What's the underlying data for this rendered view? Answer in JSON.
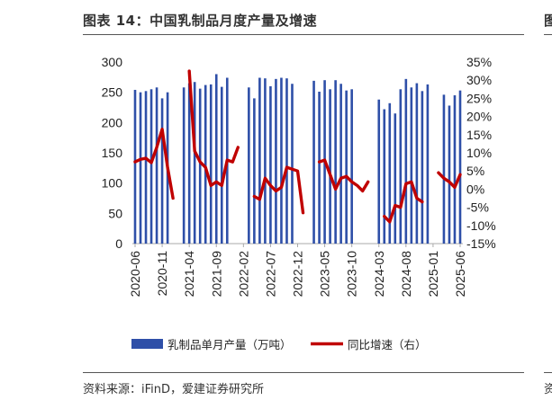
{
  "header": {
    "title": "图表 14：中国乳制品月度产量及增速",
    "next_panel_fragment_top": "图",
    "next_panel_fragment_bottom": "资"
  },
  "source": "资料来源：iFinD，爱建证券研究所",
  "colors": {
    "bar": "#2e4fa8",
    "line": "#c00000",
    "axis": "#aaaaaa"
  },
  "chart_data": {
    "type": "bar",
    "title": "",
    "xlabel": "",
    "ylabel": "",
    "y_left": {
      "min": 0,
      "max": 300,
      "ticks": [
        0,
        50,
        100,
        150,
        200,
        250,
        300
      ]
    },
    "y_right": {
      "min": -15,
      "max": 35,
      "ticks": [
        -15,
        -10,
        -5,
        0,
        5,
        10,
        15,
        20,
        25,
        30,
        35
      ],
      "unit": "%"
    },
    "x_tick_labels": [
      "2020-06",
      "2020-11",
      "2021-04",
      "2021-09",
      "2022-02",
      "2022-07",
      "2022-12",
      "2023-05",
      "2023-10",
      "2024-03",
      "2024-08",
      "2025-01",
      "2025-06"
    ],
    "categories": [
      "2020-06",
      "2020-07",
      "2020-08",
      "2020-09",
      "2020-10",
      "2020-11",
      "2020-12",
      "2021-01",
      "2021-02",
      "2021-03",
      "2021-04",
      "2021-05",
      "2021-06",
      "2021-07",
      "2021-08",
      "2021-09",
      "2021-10",
      "2021-11",
      "2021-12",
      "2022-01",
      "2022-02",
      "2022-03",
      "2022-04",
      "2022-05",
      "2022-06",
      "2022-07",
      "2022-08",
      "2022-09",
      "2022-10",
      "2022-11",
      "2022-12",
      "2023-01",
      "2023-02",
      "2023-03",
      "2023-04",
      "2023-05",
      "2023-06",
      "2023-07",
      "2023-08",
      "2023-09",
      "2023-10",
      "2023-11",
      "2023-12",
      "2024-01",
      "2024-02",
      "2024-03",
      "2024-04",
      "2024-05",
      "2024-06",
      "2024-07",
      "2024-08",
      "2024-09",
      "2024-10",
      "2024-11",
      "2024-12",
      "2025-01",
      "2025-02",
      "2025-03",
      "2025-04",
      "2025-05",
      "2025-06"
    ],
    "series": [
      {
        "name": "乳制品单月产量（万吨）",
        "type": "bar",
        "axis": "left",
        "values": [
          254,
          250,
          252,
          255,
          258,
          240,
          250,
          null,
          null,
          258,
          265,
          267,
          256,
          262,
          263,
          280,
          259,
          274,
          null,
          null,
          null,
          258,
          240,
          274,
          273,
          260,
          272,
          274,
          273,
          264,
          null,
          null,
          null,
          269,
          251,
          270,
          255,
          270,
          264,
          253,
          255,
          null,
          null,
          null,
          null,
          238,
          222,
          232,
          215,
          255,
          272,
          258,
          265,
          252,
          263,
          null,
          null,
          246,
          228,
          245,
          253
        ]
      },
      {
        "name": "同比增速（右）",
        "type": "line",
        "axis": "right",
        "values": [
          7.5,
          8.2,
          8.5,
          7.3,
          11.5,
          16.5,
          6.0,
          -2.5,
          null,
          null,
          32.5,
          10.5,
          7.5,
          6.0,
          1.0,
          2.0,
          1.0,
          8.0,
          7.5,
          11.5,
          null,
          null,
          -2.0,
          -2.8,
          3.0,
          1.0,
          -0.5,
          0.5,
          6.0,
          5.5,
          5.0,
          -6.5,
          null,
          null,
          7.5,
          8.0,
          4.0,
          0.0,
          3.0,
          3.5,
          2.0,
          1.0,
          -0.5,
          2.0,
          null,
          null,
          -7.5,
          -9.0,
          -4.5,
          -5.0,
          1.5,
          2.0,
          -2.5,
          -3.5,
          null,
          null,
          4.5,
          3.0,
          2.0,
          0.5,
          4.0
        ]
      }
    ],
    "legend": {
      "position": "bottom"
    }
  }
}
